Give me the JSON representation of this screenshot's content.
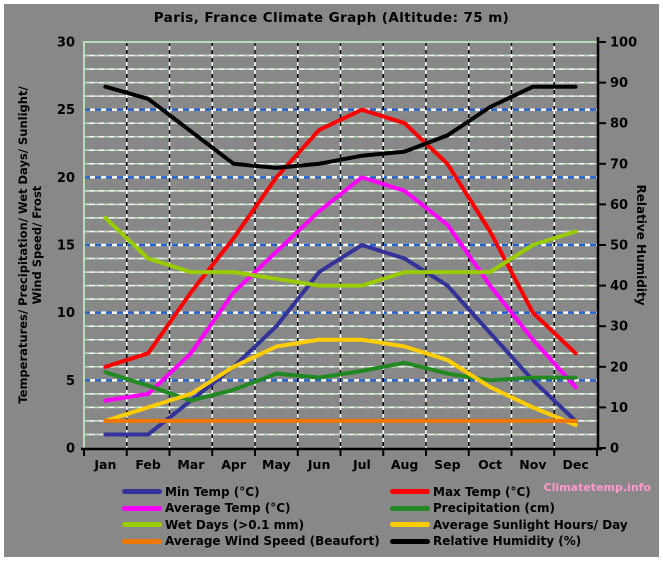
{
  "title": "Paris, France Climate Graph (Altitude: 75 m)",
  "watermark": "Climatetemp.info",
  "colors": {
    "background": "#888888",
    "frame": "#ffffff",
    "grid_green": "#b7ddb7",
    "grid_blue": "#2161d1",
    "grid_vertical": "#000000",
    "axis": "#000000",
    "text": "#000000",
    "watermark_pink": "#ff99cc"
  },
  "chart_data": {
    "type": "line",
    "title": "Paris, France Climate Graph (Altitude: 75 m)",
    "grid": "on",
    "legend_position": "bottom",
    "categories": [
      "Jan",
      "Feb",
      "Mar",
      "Apr",
      "May",
      "Jun",
      "Jul",
      "Aug",
      "Sep",
      "Oct",
      "Nov",
      "Dec"
    ],
    "left_axis": {
      "lines": [
        "Temperatures/ Precipitation/ Wet Days/ Sunlight/",
        "Wind Speed/ Frost"
      ],
      "min": 0,
      "max": 30,
      "tick_step": 5,
      "ticks": [
        0,
        5,
        10,
        15,
        20,
        25,
        30
      ]
    },
    "right_axis": {
      "label": "Relative Humidity",
      "min": 0,
      "max": 100,
      "tick_step": 10,
      "ticks": [
        0,
        10,
        20,
        30,
        40,
        50,
        60,
        70,
        80,
        90,
        100
      ]
    },
    "series": [
      {
        "name": "Min Temp (°C)",
        "color": "#333399",
        "axis": "left",
        "values": [
          1,
          1,
          3.5,
          6,
          9,
          13,
          15,
          14,
          12,
          8.5,
          5,
          2
        ]
      },
      {
        "name": "Max Temp (°C)",
        "color": "#ff0000",
        "axis": "left",
        "values": [
          6,
          7,
          11.5,
          15.5,
          20,
          23.5,
          25,
          24,
          21,
          16,
          10,
          7
        ]
      },
      {
        "name": "Average Temp (°C)",
        "color": "#ff00ff",
        "axis": "left",
        "values": [
          3.5,
          4,
          7,
          11.5,
          14.5,
          17.5,
          20,
          19,
          16.5,
          12,
          8,
          4.5
        ]
      },
      {
        "name": "Precipitation (cm)",
        "color": "#228822",
        "axis": "left",
        "values": [
          5.6,
          4.6,
          3.5,
          4.3,
          5.5,
          5.2,
          5.7,
          6.3,
          5.5,
          5,
          5.2,
          5.2
        ]
      },
      {
        "name": "Wet Days (>0.1 mm)",
        "color": "#99cc00",
        "axis": "left",
        "values": [
          17,
          14,
          13,
          13,
          12.5,
          12,
          12,
          13,
          13,
          13,
          15,
          16
        ]
      },
      {
        "name": "Average Sunlight Hours/ Day",
        "color": "#ffcc00",
        "axis": "left",
        "values": [
          2,
          3,
          4,
          6,
          7.5,
          8,
          8,
          7.5,
          6.5,
          4.5,
          3,
          1.7
        ]
      },
      {
        "name": "Average Wind Speed (Beaufort)",
        "color": "#ee7700",
        "axis": "left",
        "values": [
          2,
          2,
          2,
          2,
          2,
          2,
          2,
          2,
          2,
          2,
          2,
          2
        ]
      },
      {
        "name": "Relative Humidity (%)",
        "color": "#000000",
        "axis": "right",
        "values": [
          89,
          86,
          78,
          70,
          69,
          70,
          72,
          73,
          77,
          84,
          89,
          89
        ]
      }
    ]
  }
}
